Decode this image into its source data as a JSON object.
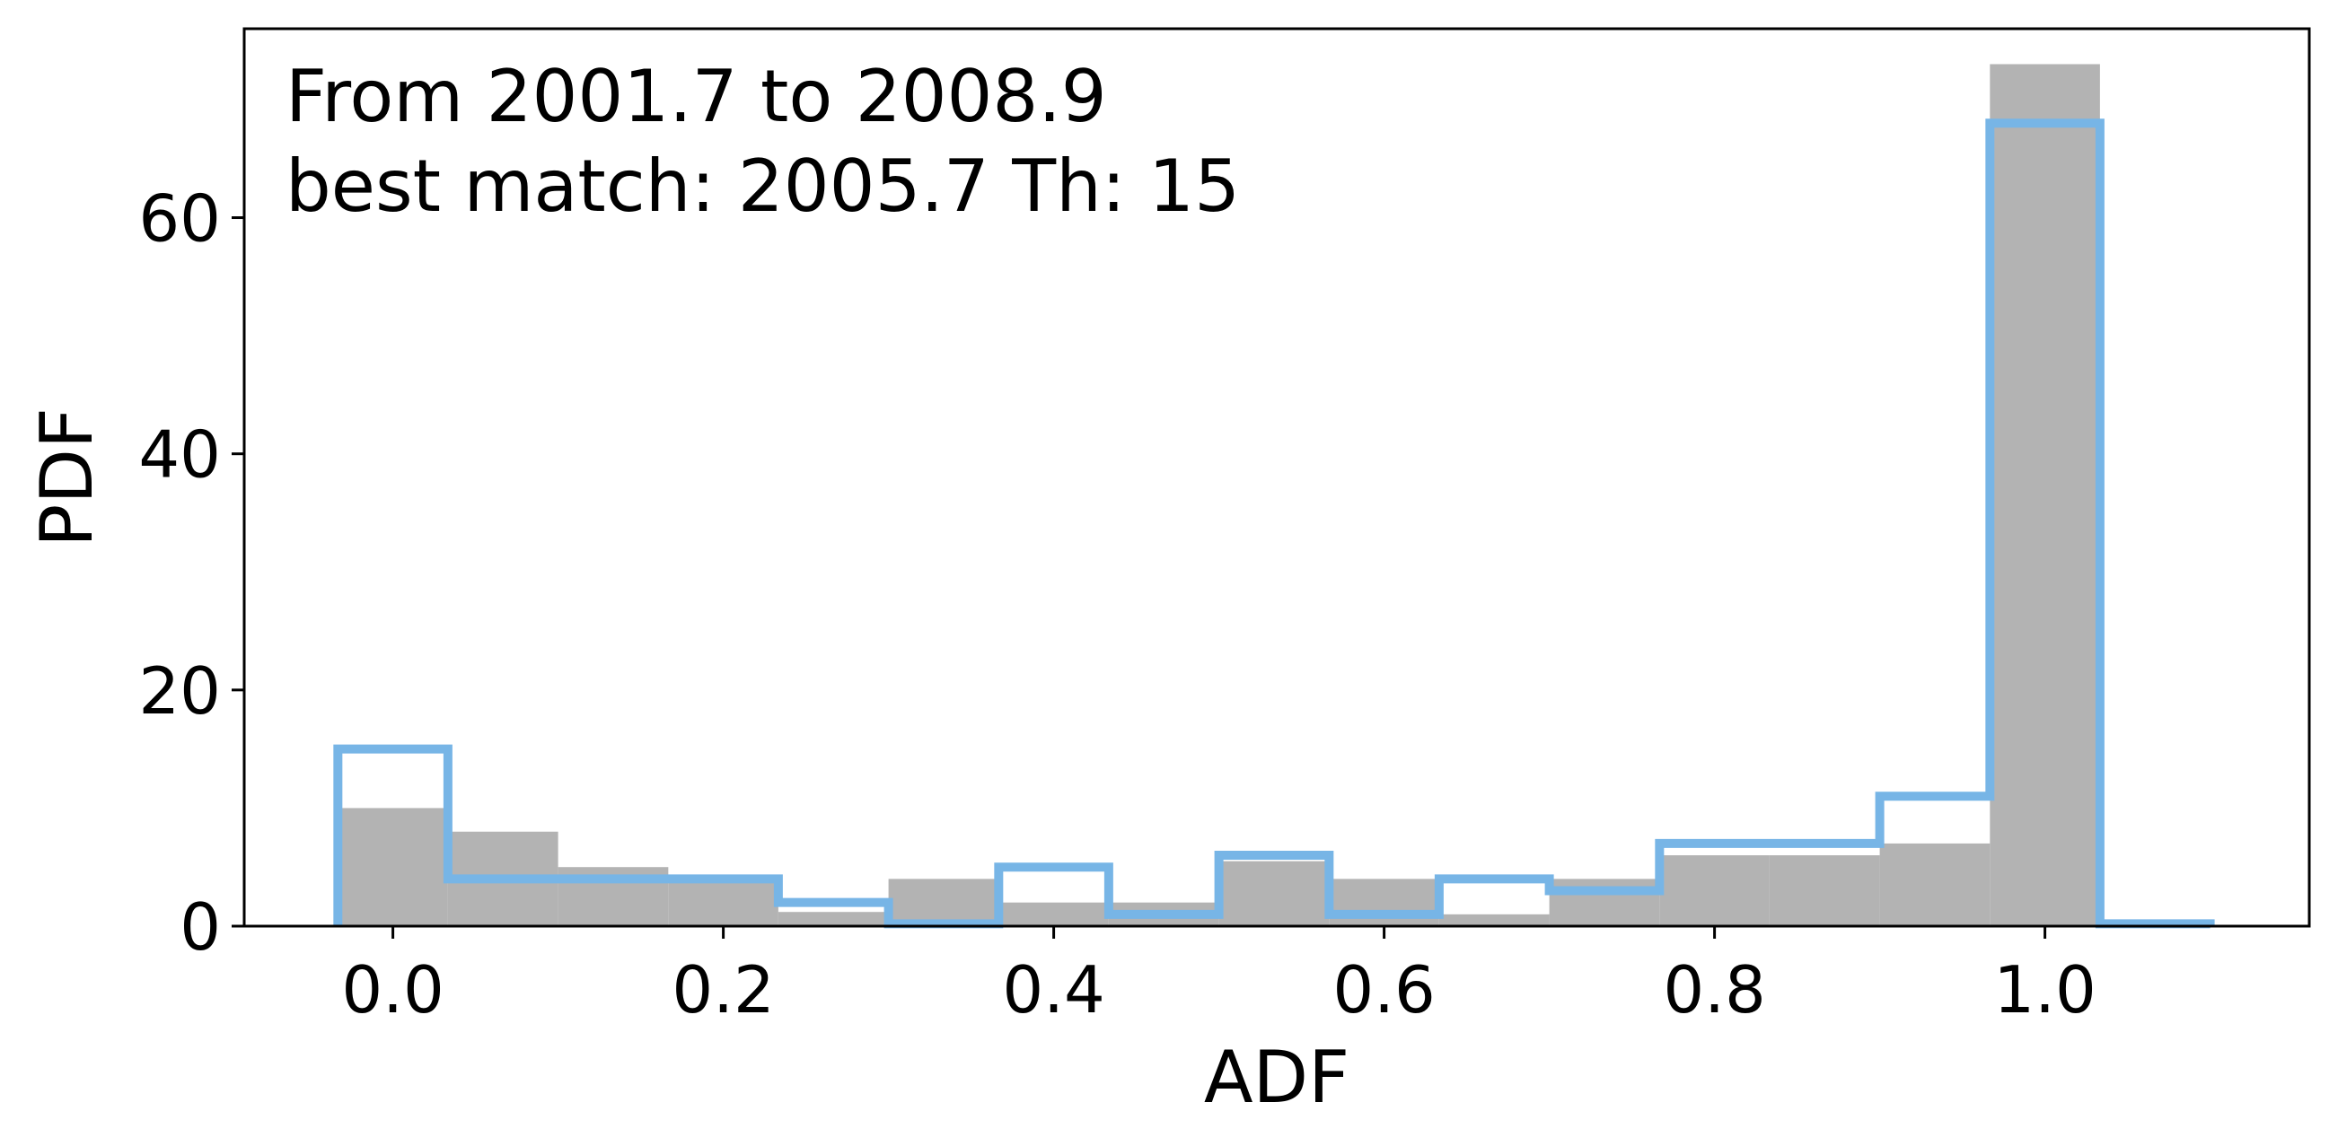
{
  "chart_data": {
    "type": "bar",
    "title": "",
    "annotation_lines": [
      "From 2001.7 to 2008.9",
      "best match: 2005.7  Th: 15"
    ],
    "xlabel": "ADF",
    "ylabel": "PDF",
    "xlim": [
      -0.09,
      1.16
    ],
    "ylim": [
      0,
      76
    ],
    "x_ticks": [
      0.0,
      0.2,
      0.4,
      0.6,
      0.8,
      1.0
    ],
    "x_tick_labels": [
      "0.0",
      "0.2",
      "0.4",
      "0.6",
      "0.8",
      "1.0"
    ],
    "y_ticks": [
      0,
      20,
      40,
      60
    ],
    "y_tick_labels": [
      "0",
      "20",
      "40",
      "60"
    ],
    "grid": false,
    "legend": "none",
    "series": [
      {
        "style": "filled",
        "color": "#b3b3b3",
        "bin_edges": [
          -0.0333,
          0.0333,
          0.1,
          0.1667,
          0.2333,
          0.3,
          0.3667,
          0.4333,
          0.5,
          0.5667,
          0.6333,
          0.7,
          0.7667,
          0.8333,
          0.9,
          0.9667,
          1.0333,
          1.1
        ],
        "values": [
          10,
          8,
          5,
          4.2,
          1.2,
          4,
          2,
          2,
          5.5,
          4,
          1,
          4,
          6,
          6,
          7,
          73,
          0
        ]
      },
      {
        "style": "step",
        "color": "#77b5e6",
        "bin_edges": [
          -0.0333,
          0.0333,
          0.1,
          0.1667,
          0.2333,
          0.3,
          0.3667,
          0.4333,
          0.5,
          0.5667,
          0.6333,
          0.7,
          0.7667,
          0.8333,
          0.9,
          0.9667,
          1.0333,
          1.1
        ],
        "values": [
          15,
          4,
          4,
          4,
          2,
          0.2,
          5,
          1,
          6,
          1,
          4,
          3,
          7,
          7,
          11,
          68,
          0.2
        ]
      }
    ]
  }
}
